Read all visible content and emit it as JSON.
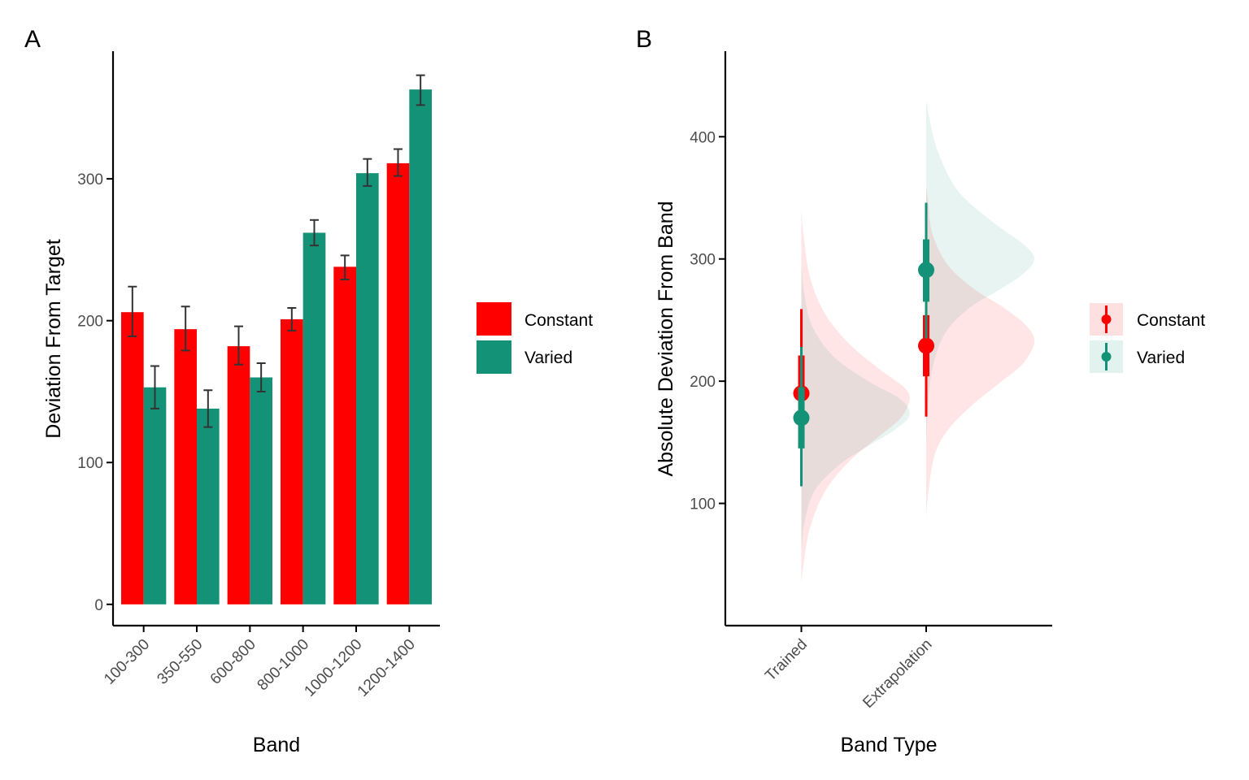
{
  "colors": {
    "constant": "#FF0000",
    "varied": "#149277"
  },
  "legend": [
    "Constant",
    "Varied"
  ],
  "chart_data": [
    {
      "panel_label": "A",
      "type": "bar",
      "xlabel": "Band",
      "ylabel": "Deviation From Target",
      "ylim": [
        -15,
        390
      ],
      "yticks": [
        0,
        100,
        200,
        300
      ],
      "categories": [
        "100-300",
        "350-550",
        "600-800",
        "800-1000",
        "1000-1200",
        "1200-1400"
      ],
      "series": [
        {
          "name": "Constant",
          "values": [
            206,
            194,
            182,
            201,
            238,
            311
          ],
          "err_low": [
            189,
            179,
            169,
            193,
            229,
            302
          ],
          "err_high": [
            224,
            210,
            196,
            209,
            246,
            321
          ]
        },
        {
          "name": "Varied",
          "values": [
            153,
            138,
            160,
            262,
            304,
            363
          ],
          "err_low": [
            138,
            125,
            150,
            253,
            295,
            352
          ],
          "err_high": [
            168,
            151,
            170,
            271,
            314,
            373
          ]
        }
      ],
      "legend_position": "right",
      "grid": false
    },
    {
      "panel_label": "B",
      "type": "pointrange-with-density",
      "xlabel": "Band Type",
      "ylabel": "Absolute Deviation From Band",
      "ylim": [
        0,
        470
      ],
      "yticks": [
        100,
        200,
        300,
        400
      ],
      "categories": [
        "Trained",
        "Extrapolation"
      ],
      "series": [
        {
          "name": "Constant",
          "points": [
            {
              "category": "Trained",
              "median": 190,
              "inner": [
                160,
                221
              ],
              "outer": [
                132,
                259
              ]
            },
            {
              "category": "Extrapolation",
              "median": 229,
              "inner": [
                204,
                254
              ],
              "outer": [
                171,
                287
              ]
            }
          ],
          "density_y": [
            [
              35,
              50,
              80,
              110,
              135,
              155,
              170,
              185,
              195,
              210,
              230,
              255,
              285,
              320,
              340
            ],
            [
              88,
              110,
              140,
              160,
              180,
              200,
              215,
              232,
              245,
              260,
              275,
              295,
              320,
              345,
              360
            ]
          ],
          "density_w": [
            [
              0,
              0.02,
              0.08,
              0.22,
              0.45,
              0.72,
              0.92,
              1.0,
              0.95,
              0.72,
              0.45,
              0.22,
              0.08,
              0.02,
              0
            ],
            [
              0,
              0.02,
              0.08,
              0.2,
              0.42,
              0.7,
              0.9,
              1.0,
              0.93,
              0.72,
              0.45,
              0.2,
              0.06,
              0.02,
              0
            ]
          ]
        },
        {
          "name": "Varied",
          "points": [
            {
              "category": "Trained",
              "median": 170,
              "inner": [
                145,
                195
              ],
              "outer": [
                114,
                228
              ]
            },
            {
              "category": "Extrapolation",
              "median": 291,
              "inner": [
                265,
                316
              ],
              "outer": [
                235,
                346
              ]
            }
          ],
          "density_y": [
            [
              60,
              85,
              110,
              130,
              145,
              160,
              172,
              185,
              200,
              220,
              245,
              270,
              295
            ],
            [
              150,
              185,
              215,
              240,
              260,
              275,
              288,
              300,
              312,
              330,
              355,
              385,
              410,
              430
            ]
          ],
          "density_w": [
            [
              0,
              0.03,
              0.12,
              0.33,
              0.58,
              0.86,
              1.0,
              0.92,
              0.62,
              0.3,
              0.1,
              0.03,
              0
            ],
            [
              0,
              0.02,
              0.07,
              0.18,
              0.4,
              0.68,
              0.9,
              1.0,
              0.9,
              0.62,
              0.3,
              0.12,
              0.04,
              0
            ]
          ]
        }
      ],
      "legend_position": "right",
      "grid": false
    }
  ]
}
